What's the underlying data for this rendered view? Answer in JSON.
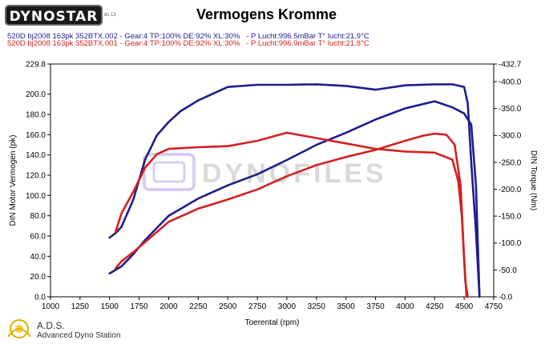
{
  "header": {
    "logo_text": "DYNOSTAR",
    "logo_subtext": "ds 13",
    "title": "Vermogens Kromme"
  },
  "runs": [
    {
      "name": "520D bj2008 163pk 352BTX.002",
      "params": "- Gear:4 TP:100% DE:92% XL:30%",
      "conditions": "- P Lucht:996.5mBar T° lucht:21.9°C",
      "color": "#1e1e8c"
    },
    {
      "name": "520D bj2008 163pk 352BTX.001",
      "params": "- Gear:4 TP:100% DE:92% XL:30%",
      "conditions": "- P Lucht:996.9mBar T° lucht:21.8°C",
      "color": "#d42020"
    }
  ],
  "watermark": "DYNOFILES",
  "footer": {
    "title": "A.D.S.",
    "subtitle": "Advanced Dyno Station"
  },
  "chart_data": {
    "type": "line",
    "xlabel": "Toerental (rpm)",
    "ylabel_left": "DIN Motor Vermogen (pk)",
    "ylabel_right": "DIN Torque (Nm)",
    "xlim": [
      1000,
      4750
    ],
    "ylim_left": [
      0,
      229.8
    ],
    "ylim_right": [
      0,
      432.7
    ],
    "x_ticks": [
      1000,
      1250,
      1500,
      1750,
      2000,
      2250,
      2500,
      2750,
      3000,
      3250,
      3500,
      3750,
      4000,
      4250,
      4500,
      4750
    ],
    "x_tick_labels": [
      "1000",
      "1250",
      "1500",
      "1750",
      "2000",
      "2250",
      "2500",
      "2750",
      "3000",
      "3250",
      "3500",
      "3750",
      "4000",
      "4250",
      "4500",
      "4750"
    ],
    "y_left_ticks": [
      0,
      20,
      40,
      60,
      80,
      100,
      120,
      140,
      160,
      180,
      200,
      229.8
    ],
    "y_left_tick_labels": [
      "0.0",
      "20.0",
      "40.0",
      "60.0",
      "80.0",
      "100.0",
      "120.0",
      "140.0",
      "160.0",
      "180.0",
      "200.0",
      "229.8"
    ],
    "y_right_ticks": [
      0,
      50,
      100,
      150,
      200,
      250,
      300,
      350,
      400,
      432.7
    ],
    "y_right_tick_labels": [
      "-0.0",
      "-50.0",
      "-100.0",
      "-150.0",
      "-200.0",
      "-250.0",
      "-300.0",
      "-350.0",
      "-400.0",
      "-432.7"
    ],
    "grid": false,
    "series": [
      {
        "name": "520D bj2008 163pk 352BTX.002",
        "quantity": "power",
        "axis": "left",
        "color": "#1e1e8c",
        "x": [
          1500,
          1600,
          1700,
          1800,
          1900,
          2000,
          2250,
          2500,
          2750,
          3000,
          3250,
          3500,
          3750,
          4000,
          4250,
          4400,
          4500,
          4560,
          4600,
          4630
        ],
        "y": [
          23,
          30,
          42,
          56,
          68,
          80,
          97,
          110,
          121,
          135,
          150,
          162,
          175,
          186,
          193,
          187,
          181,
          170,
          110,
          0
        ]
      },
      {
        "name": "520D bj2008 163pk 352BTX.002",
        "quantity": "torque",
        "axis": "right",
        "color": "#1e1e8c",
        "x": [
          1500,
          1550,
          1600,
          1700,
          1800,
          1900,
          2000,
          2100,
          2250,
          2500,
          2750,
          3000,
          3250,
          3500,
          3750,
          4000,
          4250,
          4400,
          4500,
          4530,
          4560,
          4600,
          4630
        ],
        "y": [
          110,
          118,
          130,
          180,
          255,
          300,
          325,
          345,
          365,
          390,
          394,
          394,
          395,
          392,
          385,
          393,
          395,
          395,
          390,
          360,
          250,
          120,
          0
        ]
      },
      {
        "name": "520D bj2008 163pk 352BTX.001",
        "quantity": "power",
        "axis": "left",
        "color": "#d42020",
        "x": [
          1550,
          1600,
          1700,
          1800,
          1900,
          2000,
          2250,
          2500,
          2750,
          3000,
          3250,
          3500,
          3750,
          4000,
          4150,
          4250,
          4350,
          4420,
          4470,
          4490,
          4510,
          4530
        ],
        "y": [
          28,
          35,
          44,
          54,
          64,
          74,
          87,
          96,
          106,
          119,
          130,
          138,
          145,
          154,
          159,
          161,
          160,
          150,
          110,
          60,
          15,
          0
        ]
      },
      {
        "name": "520D bj2008 163pk 352BTX.001",
        "quantity": "torque",
        "axis": "right",
        "color": "#d42020",
        "x": [
          1550,
          1600,
          1700,
          1800,
          1900,
          2000,
          2250,
          2500,
          2750,
          3000,
          3250,
          3500,
          3750,
          4000,
          4250,
          4400,
          4450,
          4480,
          4500,
          4520
        ],
        "y": [
          120,
          155,
          195,
          240,
          265,
          275,
          278,
          280,
          290,
          305,
          295,
          285,
          275,
          270,
          268,
          255,
          215,
          150,
          70,
          0
        ]
      }
    ]
  }
}
